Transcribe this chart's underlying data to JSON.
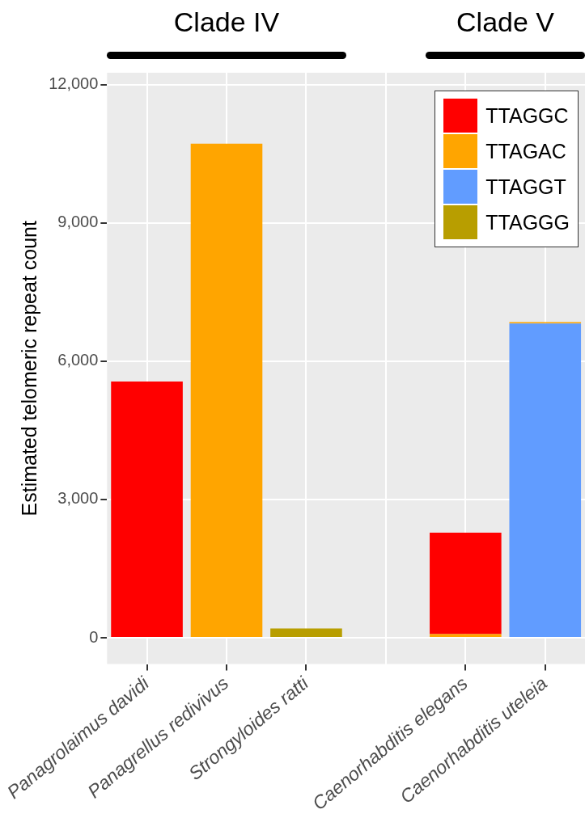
{
  "chart_data": {
    "type": "bar",
    "ylabel": "Estimated telomeric repeat count",
    "categories": [
      "Panagrolaimus davidi",
      "Panagrellus redivivus",
      "Strongyloides ratti",
      null,
      "Caenorhabditis elegans",
      "Caenorhabditis uteleia"
    ],
    "ylim": [
      -570,
      12260
    ],
    "yticks": [
      0,
      {
        "value": 3000,
        "label": "3,000"
      },
      {
        "value": 6000,
        "label": "6,000"
      },
      {
        "value": 9000,
        "label": "9,000"
      },
      {
        "value": 12000,
        "label": "12,000"
      }
    ],
    "stacked": true,
    "series": [
      {
        "name": "TTAGGG",
        "color": "#b89e00",
        "values": [
          null,
          null,
          200,
          null,
          null,
          null
        ]
      },
      {
        "name": "TTAGGT",
        "color": "#619cff",
        "values": [
          null,
          null,
          null,
          null,
          null,
          6820
        ]
      },
      {
        "name": "TTAGAC",
        "color": "#ffa500",
        "values": [
          null,
          10720,
          null,
          null,
          80,
          30
        ]
      },
      {
        "name": "TTAGGC",
        "color": "#ff0000",
        "values": [
          5560,
          null,
          null,
          null,
          2200,
          null
        ]
      }
    ],
    "annotations": [
      "Clade IV",
      "Clade V"
    ],
    "grid": true,
    "legend": "top right"
  }
}
